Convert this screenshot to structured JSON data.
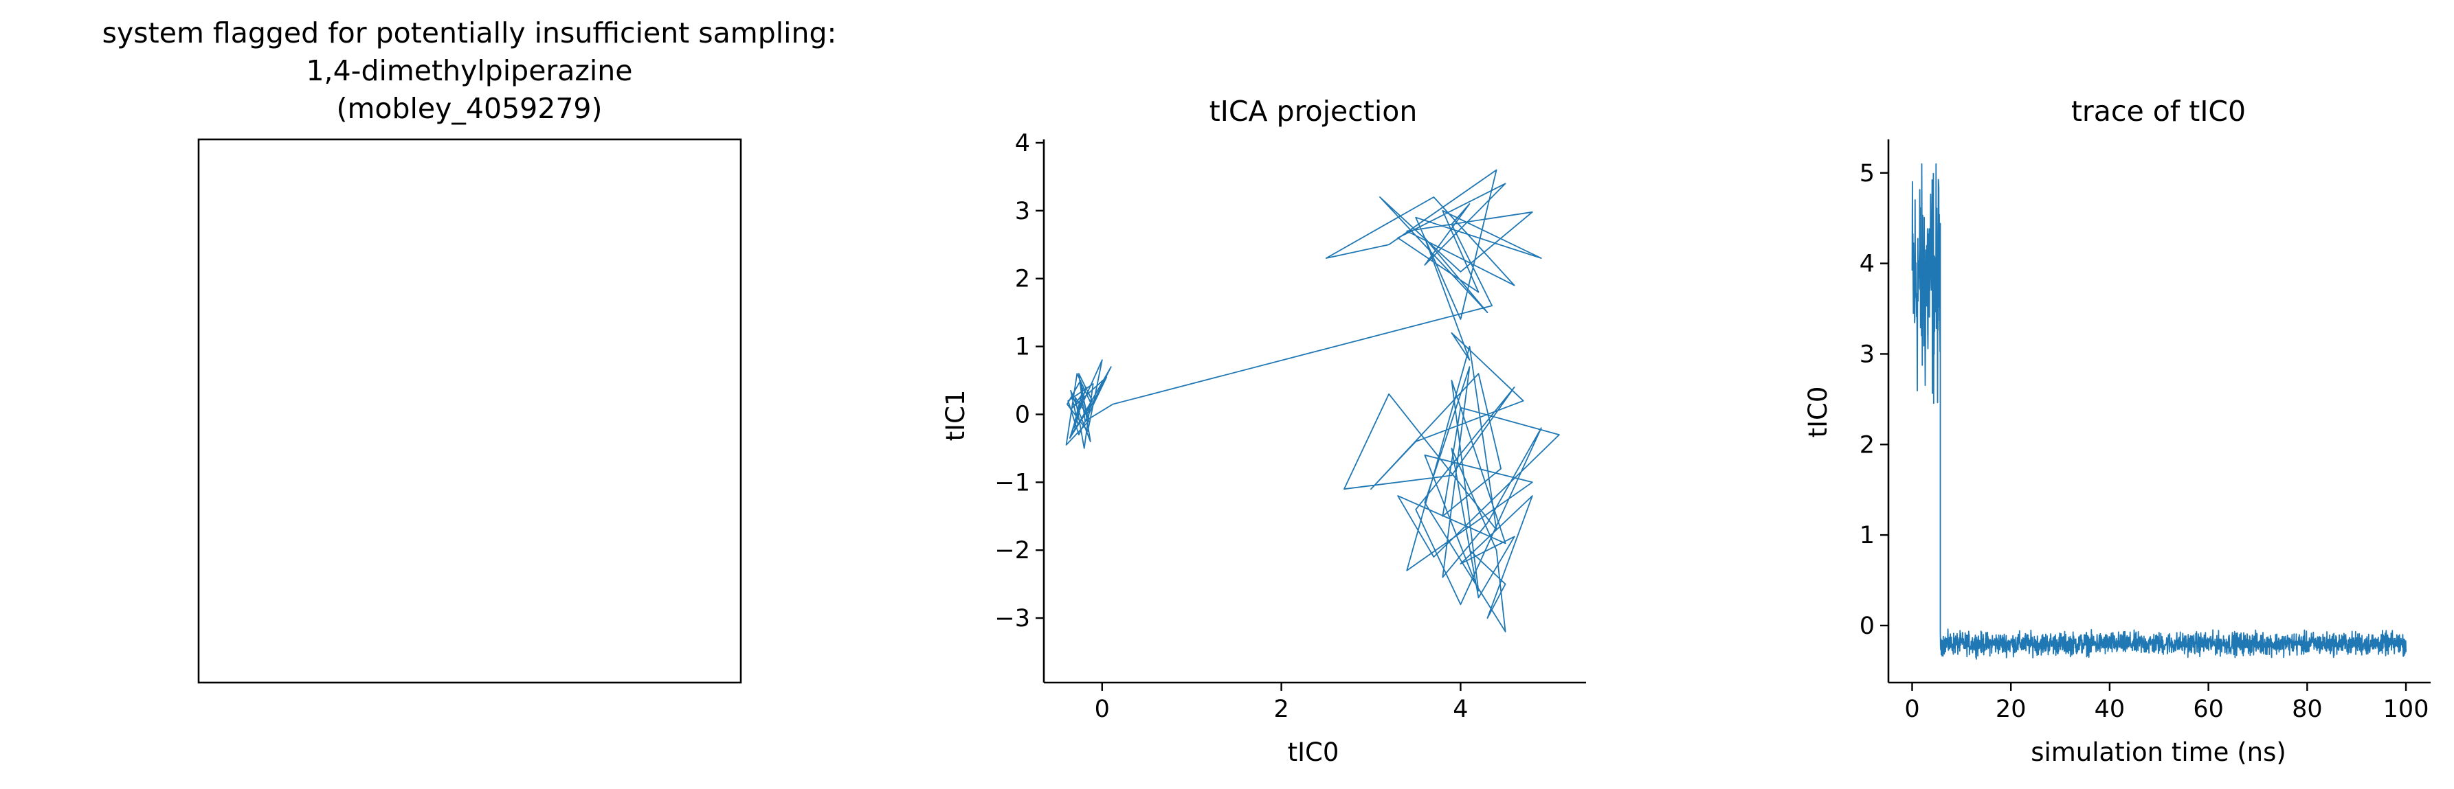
{
  "figure": {
    "panel1": {
      "title_lines": [
        "system flagged for potentially insufficient sampling:",
        "1,4-dimethylpiperazine",
        "(mobley_4059279)"
      ]
    }
  },
  "chart_data": [
    {
      "type": "line",
      "title": "tICA projection",
      "xlabel": "tIC0",
      "ylabel": "tIC1",
      "xlim": [
        -0.65,
        5.4
      ],
      "ylim": [
        -3.95,
        4.05
      ],
      "xticks": [
        0,
        2,
        4
      ],
      "xtick_labels": [
        "0",
        "2",
        "4"
      ],
      "yticks": [
        -3,
        -2,
        -1,
        0,
        1,
        2,
        3,
        4
      ],
      "ytick_labels": [
        "−3",
        "−2",
        "−1",
        "0",
        "1",
        "2",
        "3",
        "4"
      ],
      "grid": false,
      "legend": "none",
      "color": "#1f77b4",
      "series": [
        {
          "x": [
            -0.25,
            -0.31,
            -0.18,
            -0.36,
            -0.12,
            -0.28,
            -0.4,
            -0.15,
            -0.22,
            -0.33,
            0.05,
            -0.26,
            -0.38,
            -0.1,
            -0.2,
            -0.3,
            -0.17,
            0.1,
            -0.27,
            -0.35,
            -0.13,
            -0.24,
            -0.39,
            -0.16,
            0.0,
            -0.29,
            -0.21,
            -0.34,
            -0.11,
            -0.26,
            -0.19,
            0.12,
            4.35,
            3.9,
            4.1,
            3.6,
            4.5,
            3.3,
            4.2,
            3.8,
            4.9,
            3.5,
            4.0,
            4.4,
            3.2,
            2.5,
            3.7,
            4.6,
            3.4,
            4.8,
            4.0,
            3.1,
            4.3,
            3.6,
            4.1,
            3.9,
            4.7,
            3.5,
            3.0,
            4.2,
            4.45,
            3.8,
            4.0,
            5.1,
            3.7,
            3.3,
            4.5,
            3.9,
            4.2,
            3.6,
            4.8,
            3.4,
            4.1,
            4.4,
            3.2,
            2.7,
            3.9,
            4.6,
            3.5,
            4.0,
            4.9,
            4.3,
            3.8,
            4.1,
            3.6,
            4.5,
            4.4,
            3.9,
            4.2,
            4.6,
            4.0,
            4.8,
            4.3,
            4.5,
            4.1
          ],
          "y": [
            0.05,
            -0.2,
            0.4,
            -0.35,
            0.15,
            0.6,
            -0.45,
            -0.1,
            0.3,
            0.1,
            0.55,
            -0.3,
            0.2,
            0.45,
            -0.5,
            0.25,
            0.0,
            0.7,
            -0.15,
            0.35,
            -0.4,
            0.5,
            0.15,
            -0.25,
            0.8,
            -0.05,
            0.4,
            -0.3,
            0.2,
            0.6,
            -0.1,
            0.15,
            1.6,
            2.8,
            3.1,
            2.2,
            3.4,
            2.6,
            1.8,
            3.0,
            2.3,
            2.9,
            1.4,
            3.6,
            2.5,
            2.3,
            3.2,
            1.9,
            2.7,
            2.98,
            2.1,
            3.2,
            1.5,
            2.6,
            0.8,
            1.2,
            0.2,
            -0.4,
            -1.1,
            0.6,
            -0.8,
            -1.5,
            0.1,
            -0.3,
            -2.1,
            -1.2,
            -1.9,
            0.5,
            -2.6,
            -0.6,
            -1.0,
            -2.3,
            1.0,
            -1.7,
            0.3,
            -1.1,
            -0.9,
            0.4,
            -1.4,
            -2.8,
            -0.2,
            -1.6,
            -2.4,
            0.7,
            -1.3,
            -3.2,
            -2.0,
            -0.5,
            -2.7,
            -1.8,
            -2.2,
            -1.2,
            -3.0,
            -2.5,
            -2.0
          ]
        }
      ]
    },
    {
      "type": "line",
      "title": "trace of tIC0",
      "xlabel": "simulation time (ns)",
      "ylabel": "tIC0",
      "xlim": [
        -4.8,
        105.0
      ],
      "ylim": [
        -0.63,
        5.37
      ],
      "xticks": [
        0,
        20,
        40,
        60,
        80,
        100
      ],
      "xtick_labels": [
        "0",
        "20",
        "40",
        "60",
        "80",
        "100"
      ],
      "yticks": [
        0,
        1,
        2,
        3,
        4,
        5
      ],
      "ytick_labels": [
        "0",
        "1",
        "2",
        "3",
        "4",
        "5"
      ],
      "grid": false,
      "legend": "none",
      "color": "#1f77b4",
      "series": [
        {
          "segments": [
            {
              "t_start": 0,
              "t_end": 5.7,
              "mean": 3.8,
              "spread": 1.3,
              "max": 5.1,
              "min": 2.45
            },
            {
              "t_start": 5.7,
              "t_end": 100,
              "mean": -0.2,
              "spread": 0.12,
              "max": 0.18,
              "min": -0.38
            }
          ]
        }
      ]
    }
  ]
}
